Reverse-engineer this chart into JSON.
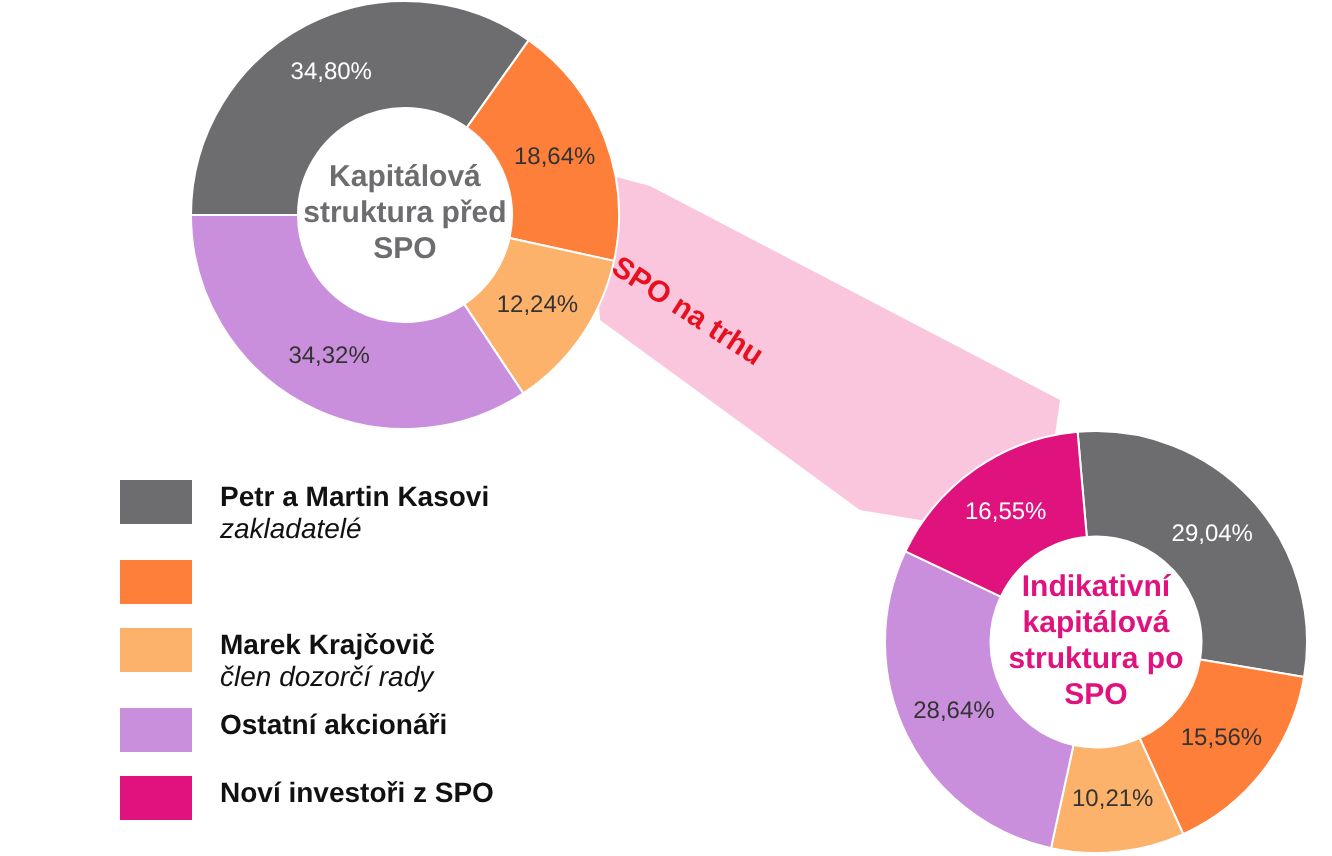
{
  "chart_data": [
    {
      "type": "donut",
      "title": "Kapitálová struktura před SPO",
      "categories": [
        null,
        null,
        null,
        null
      ],
      "values": [
        34.8,
        18.64,
        12.24,
        34.32
      ],
      "value_labels": [
        "34,80%",
        "18,64%",
        "12,24%",
        "34,32%"
      ],
      "colors": [
        "#6d6d70",
        "#fd7f3a",
        "#fdb26b",
        "#c98fdc"
      ],
      "annotations": [
        "SPO na trhu"
      ]
    },
    {
      "type": "donut",
      "title": "Indikativní kapitálová struktura po SPO",
      "categories": [
        "Petr a Martin Kasovi\nzakladatelé",
        null,
        "Marek Krajčovič\nčlen dozorčí rady",
        "Ostatní akcionáři",
        "Noví investoři z SPO"
      ],
      "values": [
        29.04,
        15.56,
        10.21,
        28.64,
        16.55
      ],
      "value_labels": [
        "29,04%",
        "15,56%",
        "10,21%",
        "28,64%",
        "16,55%"
      ],
      "colors": [
        "#6d6d70",
        "#fd7f3a",
        "#fdb26b",
        "#c98fdc",
        "#e0127d"
      ],
      "legend": "left"
    }
  ]
}
